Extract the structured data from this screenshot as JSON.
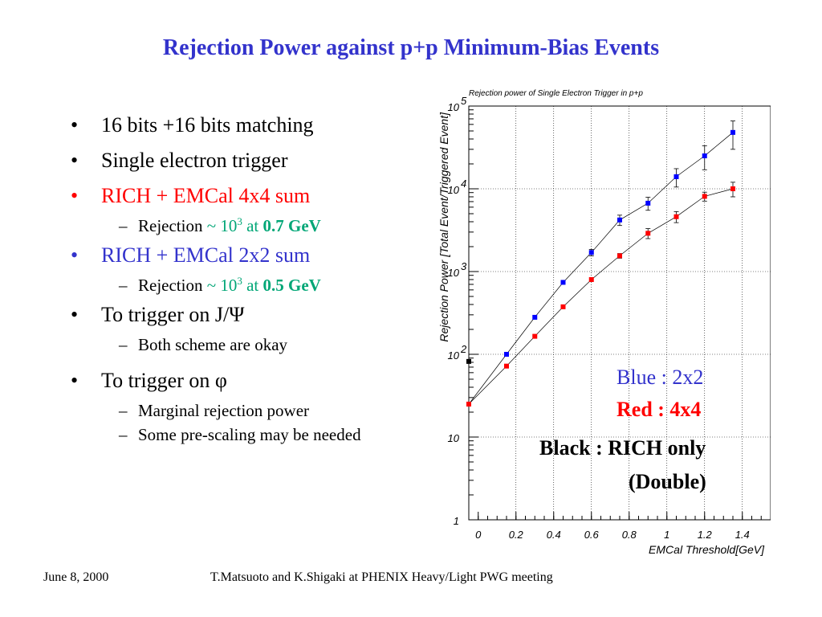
{
  "slide": {
    "title": "Rejection Power against p+p Minimum-Bias Events",
    "footer_date": "June 8, 2000",
    "footer_credit": "T.Matsuoto and K.Shigaki at PHENIX Heavy/Light PWG meeting"
  },
  "bullets": {
    "b1": "16 bits +16 bits matching",
    "b2": "Single electron trigger",
    "b3": "RICH + EMCal 4x4 sum",
    "b3_sub_prefix": "Rejection",
    "b3_sub_tilde": "~ 10",
    "b3_sub_exp": "3",
    "b3_sub_at": "at",
    "b3_sub_value": "0.7 GeV",
    "b4": "RICH + EMCal 2x2 sum",
    "b4_sub_prefix": "Rejection",
    "b4_sub_tilde": "~ 10",
    "b4_sub_exp": "3",
    "b4_sub_at": "at",
    "b4_sub_value": "0.5 GeV",
    "b5": "To  trigger on J/Ψ",
    "b5_sub": "Both scheme are okay",
    "b6": "To trigger on φ",
    "b6_sub1": "Marginal rejection power",
    "b6_sub2": "Some pre-scaling may be needed"
  },
  "legend_text": {
    "blue": "Blue : 2x2",
    "red": "Red  : 4x4",
    "black1": "Black : RICH only",
    "black2": "(Double)"
  },
  "colors": {
    "title": "#3333cc",
    "blue_series": "#0000ff",
    "red_series": "#ff0000",
    "black_series": "#000000",
    "teal_text": "#00a676"
  },
  "chart_data": {
    "type": "scatter",
    "title": "Rejection power of Single Electron Trigger in p+p",
    "xlabel": "EMCal Threshold[GeV]",
    "ylabel": "Rejection Power [Total Event/Triggered Event]",
    "xlim": [
      -0.05,
      1.55
    ],
    "ylim": [
      1,
      100000
    ],
    "yscale": "log",
    "x_ticks": [
      0,
      0.2,
      0.4,
      0.6,
      0.8,
      1,
      1.2,
      1.4
    ],
    "x_tick_labels": [
      "0",
      "0.2",
      "0.4",
      "0.6",
      "0.8",
      "1",
      "1.2",
      "1.4"
    ],
    "y_ticks": [
      1,
      10,
      100,
      1000,
      10000,
      100000
    ],
    "y_tick_labels": [
      {
        "base": "1",
        "exp": ""
      },
      {
        "base": "10",
        "exp": ""
      },
      {
        "base": "10",
        "exp": "2"
      },
      {
        "base": "10",
        "exp": "3"
      },
      {
        "base": "10",
        "exp": "4"
      },
      {
        "base": "10",
        "exp": "5"
      }
    ],
    "grid": true,
    "series": [
      {
        "name": "Blue : 2x2",
        "color": "#0000ff",
        "x": [
          -0.05,
          0.15,
          0.3,
          0.45,
          0.6,
          0.75,
          0.9,
          1.05,
          1.2,
          1.35
        ],
        "y": [
          25,
          100,
          280,
          740,
          1700,
          4200,
          6700,
          14000,
          25000,
          48000
        ],
        "yerr": [
          0,
          0,
          0,
          0,
          150,
          600,
          1200,
          3500,
          8000,
          18000
        ]
      },
      {
        "name": "Red  : 4x4",
        "color": "#ff0000",
        "x": [
          -0.05,
          0.15,
          0.3,
          0.45,
          0.6,
          0.75,
          0.9,
          1.05,
          1.2,
          1.35
        ],
        "y": [
          25,
          72,
          165,
          375,
          800,
          1550,
          2900,
          4600,
          8100,
          10000
        ],
        "yerr": [
          0,
          0,
          0,
          0,
          0,
          100,
          400,
          700,
          1000,
          2000
        ]
      },
      {
        "name": "Black : RICH only (Double)",
        "color": "#000000",
        "x": [
          -0.05
        ],
        "y": [
          82
        ],
        "yerr": [
          0
        ]
      }
    ]
  }
}
